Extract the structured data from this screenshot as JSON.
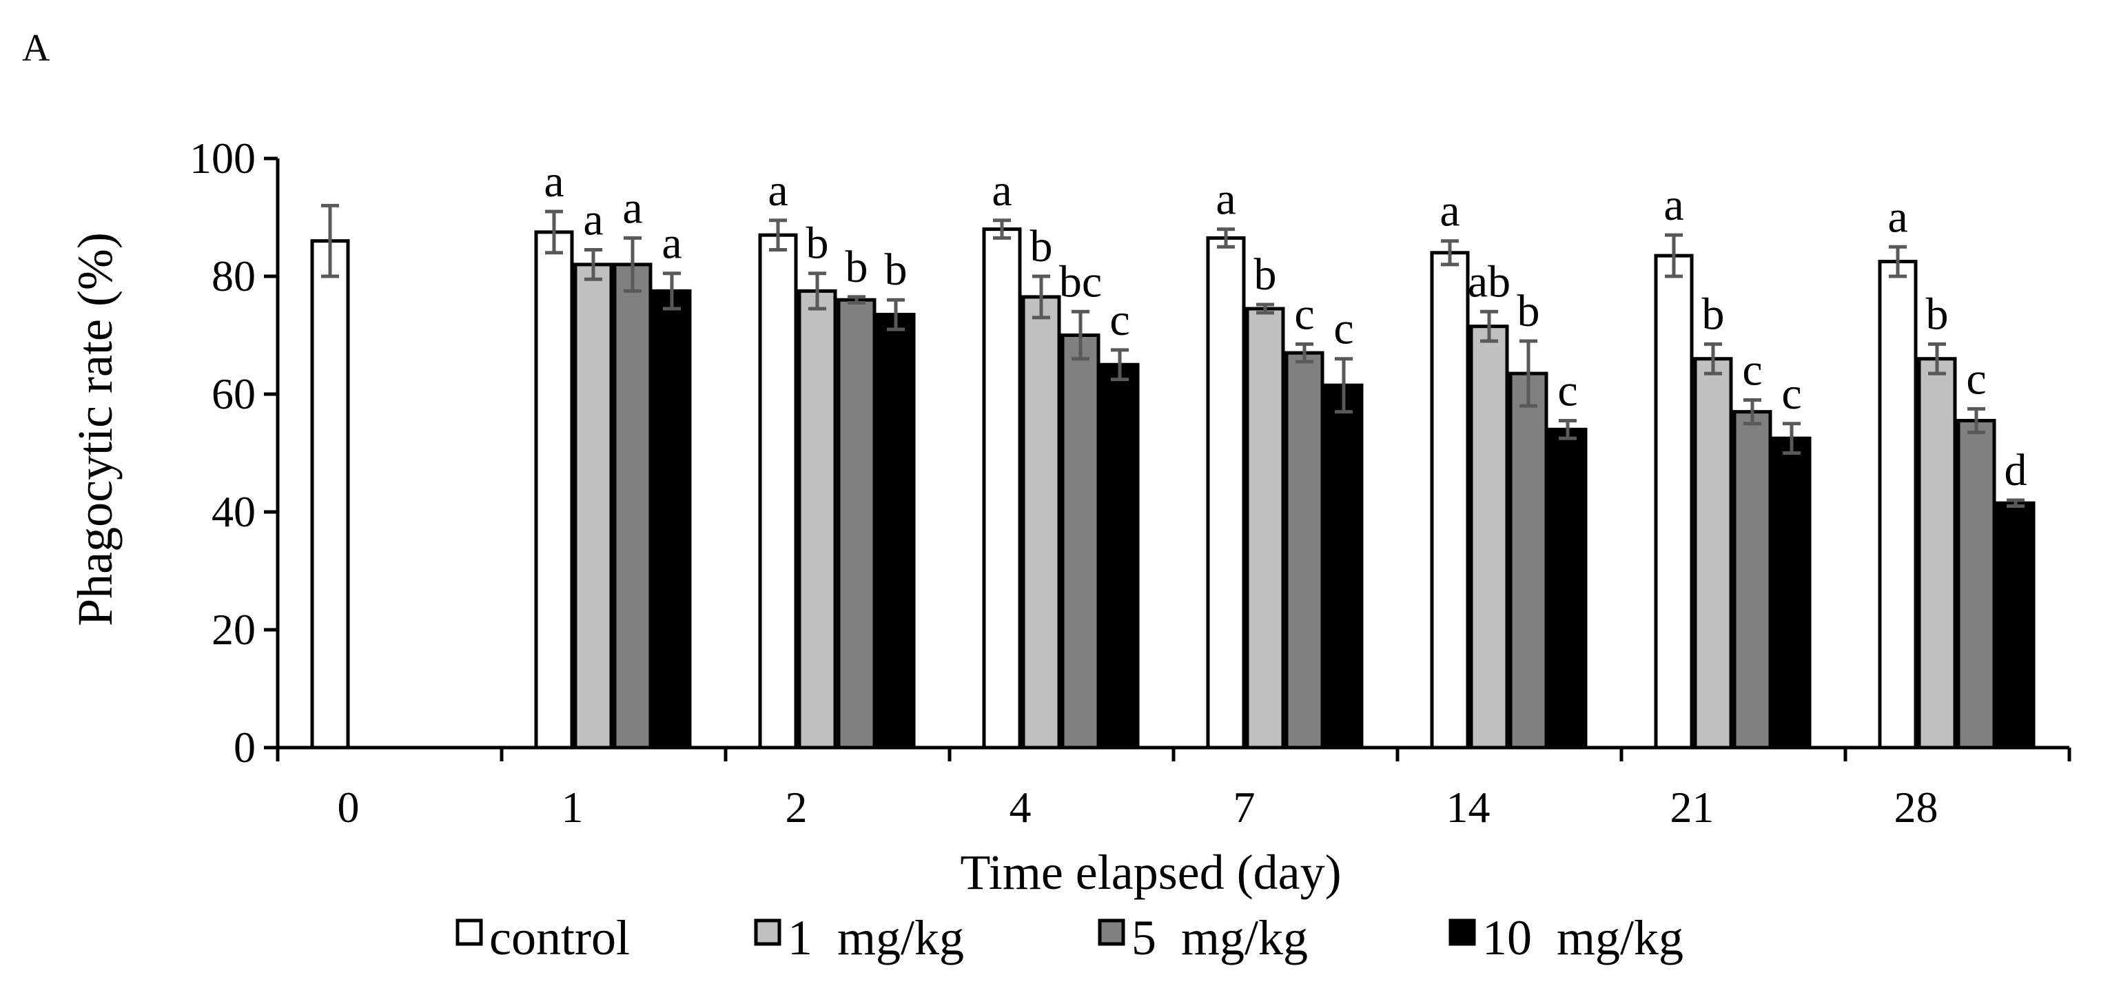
{
  "panel_label": "A",
  "colors": {
    "control": "#ffffff",
    "1 mg/kg": "#c0c0c0",
    "5 mg/kg": "#808080",
    "10 mg/kg": "#000000",
    "error_bar": "#595959",
    "axis": "#000000"
  },
  "chart_data": {
    "type": "bar",
    "title": "",
    "xlabel": "Time elapsed (day)",
    "ylabel": "Phagocytic rate (%)",
    "ylim": [
      0,
      100
    ],
    "yticks": [
      "0",
      "20",
      "40",
      "60",
      "80",
      "100"
    ],
    "categories": [
      "0",
      "1",
      "2",
      "4",
      "7",
      "14",
      "21",
      "28"
    ],
    "legend_position": "bottom",
    "series": [
      {
        "name": "control",
        "legend_label": "control",
        "values": [
          86,
          87.5,
          87,
          88,
          86.5,
          84,
          83.5,
          82.5
        ],
        "errors": [
          6,
          3.5,
          2.5,
          1.5,
          1.5,
          2,
          3.5,
          2.5
        ],
        "labels": [
          "",
          "a",
          "a",
          "a",
          "a",
          "a",
          "a",
          "a"
        ]
      },
      {
        "name": "1 mg/kg",
        "legend_label": "1  mg/kg",
        "values": [
          null,
          82,
          77.5,
          76.5,
          74.5,
          71.5,
          66,
          66
        ],
        "errors": [
          null,
          2.5,
          3,
          3.5,
          0.7,
          2.5,
          2.5,
          2.5
        ],
        "labels": [
          "",
          "a",
          "b",
          "b",
          "b",
          "ab",
          "b",
          "b"
        ]
      },
      {
        "name": "5 mg/kg",
        "legend_label": "5  mg/kg",
        "values": [
          null,
          82,
          76,
          70,
          67,
          63.5,
          57,
          55.5
        ],
        "errors": [
          null,
          4.5,
          0.5,
          4,
          1.5,
          5.5,
          2,
          2
        ],
        "labels": [
          "",
          "a",
          "b",
          "bc",
          "c",
          "b",
          "c",
          "c"
        ]
      },
      {
        "name": "10 mg/kg",
        "legend_label": "10  mg/kg",
        "values": [
          null,
          77.5,
          73.5,
          65,
          61.5,
          54,
          52.5,
          41.5
        ],
        "errors": [
          null,
          3,
          2.5,
          2.5,
          4.5,
          1.5,
          2.5,
          0.5
        ],
        "labels": [
          "",
          "a",
          "b",
          "c",
          "c",
          "c",
          "c",
          "d"
        ]
      }
    ]
  }
}
